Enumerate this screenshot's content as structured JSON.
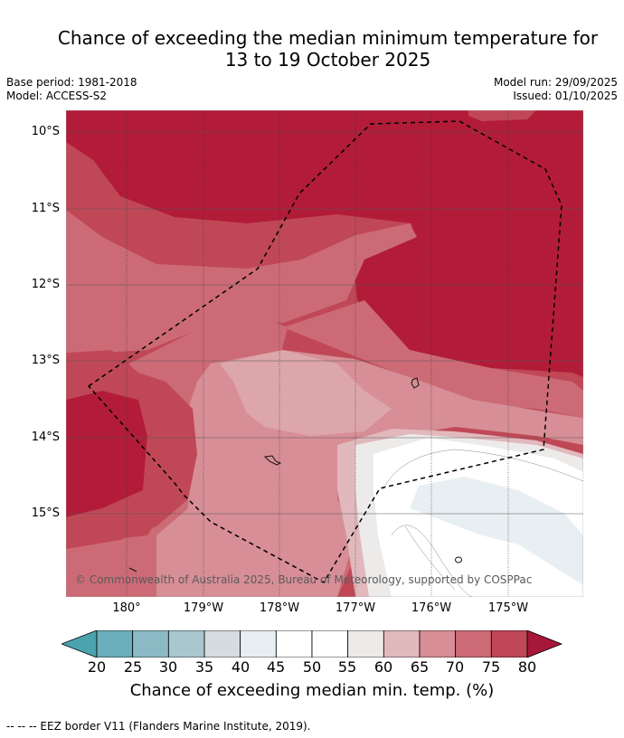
{
  "title": {
    "line1": "Chance of exceeding the median minimum temperature for",
    "line2": "13 to 19 October 2025"
  },
  "meta": {
    "base_period": "Base period: 1981-2018",
    "model": "Model: ACCESS-S2",
    "model_run": "Model run: 29/09/2025",
    "issued": "Issued: 01/10/2025"
  },
  "map": {
    "lat_labels": [
      "10°S",
      "11°S",
      "12°S",
      "13°S",
      "14°S",
      "15°S"
    ],
    "lon_labels": [
      "180°",
      "179°W",
      "178°W",
      "177°W",
      "176°W",
      "175°W"
    ],
    "copyright": "© Commonwealth of Australia 2025, Bureau of Meteorology, supported by COSPPac",
    "colors": {
      "c80": "#b21c39",
      "c75": "#c04856",
      "c70": "#cc6b76",
      "c65": "#d78e96",
      "c60": "#e1b9bd",
      "c55": "#ecebea",
      "c50": "#ffffff",
      "c45": "#e8eff2",
      "c40": "#d5dcdf"
    }
  },
  "colorbar": {
    "ticks": [
      "20",
      "25",
      "30",
      "35",
      "40",
      "45",
      "50",
      "55",
      "60",
      "65",
      "70",
      "75",
      "80"
    ],
    "colors": [
      "#6aafbb",
      "#8bbac5",
      "#a9c7ce",
      "#d5dcdf",
      "#e8eff2",
      "#ffffff",
      "#ffffff",
      "#ecebea",
      "#e1b9bd",
      "#d78e96",
      "#cc6b76",
      "#c04856"
    ],
    "under_color": "#4aa3ae",
    "over_color": "#a6173a",
    "label": "Chance of exceeding median min. temp. (%)"
  },
  "footnote": "--  --  -- EEZ border V11 (Flanders Marine Institute, 2019)."
}
